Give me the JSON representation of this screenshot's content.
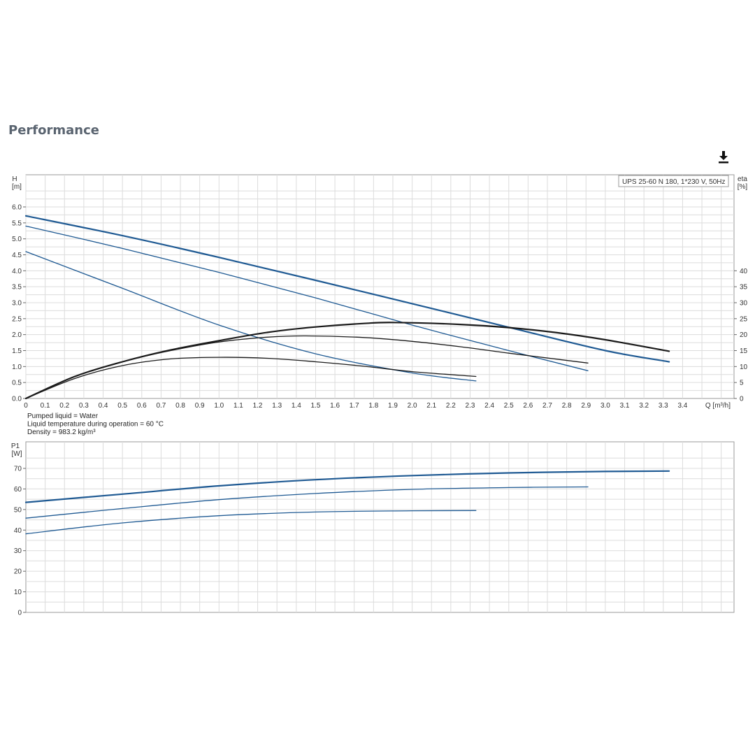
{
  "page": {
    "title": "Performance",
    "download_icon": "download-icon"
  },
  "colors": {
    "head": "#1f5a93",
    "eta": "#1a1a1a",
    "power": "#1f5a93",
    "grid": "#dcdcdc",
    "frame": "#9a9a9a"
  },
  "chart_data": [
    {
      "type": "line",
      "legend_label": "UPS 25-60 N 180, 1*230 V, 50Hz",
      "xlabel": "Q [m³/h]",
      "ylabel_left": [
        "H",
        "[m]"
      ],
      "ylabel_right": [
        "eta",
        "[%]"
      ],
      "xlim": [
        0,
        3.65
      ],
      "ylim_left": [
        0,
        6.0
      ],
      "ylim_right": [
        0,
        40
      ],
      "grid": true,
      "legend": "top-right",
      "x_ticks": [
        "0",
        "0.1",
        "0.2",
        "0.3",
        "0.4",
        "0.5",
        "0.6",
        "0.7",
        "0.8",
        "0.9",
        "1.0",
        "1.1",
        "1.2",
        "1.3",
        "1.4",
        "1.5",
        "1.6",
        "1.7",
        "1.8",
        "1.9",
        "2.0",
        "2.1",
        "2.2",
        "2.3",
        "2.4",
        "2.5",
        "2.6",
        "2.7",
        "2.8",
        "2.9",
        "3.0",
        "3.1",
        "3.2",
        "3.3",
        "3.4"
      ],
      "y_ticks_left": [
        "0.0",
        "0.5",
        "1.0",
        "1.5",
        "2.0",
        "2.5",
        "3.0",
        "3.5",
        "4.0",
        "4.5",
        "5.0",
        "5.5",
        "6.0"
      ],
      "y_ticks_right": [
        "0",
        "5",
        "10",
        "15",
        "20",
        "25",
        "30",
        "35",
        "40"
      ],
      "head_series": [
        {
          "x": [
            0,
            0.5,
            1.0,
            1.5,
            2.0,
            2.5,
            3.0,
            3.33
          ],
          "y": [
            5.72,
            5.1,
            4.42,
            3.7,
            2.97,
            2.23,
            1.5,
            1.15
          ]
        },
        {
          "x": [
            0,
            0.5,
            1.0,
            1.5,
            2.0,
            2.5,
            2.91
          ],
          "y": [
            5.4,
            4.7,
            3.95,
            3.15,
            2.3,
            1.5,
            0.87
          ]
        },
        {
          "x": [
            0,
            0.5,
            1.0,
            1.5,
            2.0,
            2.33
          ],
          "y": [
            4.6,
            3.45,
            2.3,
            1.4,
            0.8,
            0.55
          ]
        }
      ],
      "eta_series": [
        {
          "x": [
            0,
            0.25,
            0.5,
            0.75,
            1.0,
            1.25,
            1.5,
            1.75,
            1.9,
            2.25,
            2.5,
            2.75,
            3.0,
            3.33
          ],
          "y": [
            0,
            6.8,
            11.5,
            15.2,
            18.1,
            20.7,
            22.4,
            23.5,
            23.8,
            23.2,
            22.2,
            20.6,
            18.4,
            14.8
          ]
        },
        {
          "x": [
            0,
            0.25,
            0.5,
            0.75,
            1.0,
            1.25,
            1.45,
            1.75,
            2.0,
            2.25,
            2.5,
            2.75,
            2.91
          ],
          "y": [
            0,
            6.8,
            11.5,
            15.0,
            17.7,
            19.2,
            19.6,
            19.1,
            17.9,
            16.2,
            14.2,
            12.3,
            11.1
          ]
        },
        {
          "x": [
            0,
            0.25,
            0.5,
            0.75,
            1.0,
            1.25,
            1.5,
            1.75,
            2.0,
            2.33
          ],
          "y": [
            0,
            6.2,
            10.3,
            12.4,
            12.9,
            12.6,
            11.5,
            10.1,
            8.4,
            6.9
          ]
        }
      ],
      "notes": [
        "Pumped liquid = Water",
        "Liquid temperature during operation = 60 °C",
        "Density = 983.2 kg/m³"
      ]
    },
    {
      "type": "line",
      "ylabel": [
        "P1",
        "[W]"
      ],
      "xlim": [
        0,
        3.65
      ],
      "ylim": [
        0,
        70
      ],
      "grid": true,
      "y_ticks": [
        "0",
        "10",
        "20",
        "30",
        "40",
        "50",
        "60",
        "70"
      ],
      "series": [
        {
          "x": [
            0,
            0.5,
            1.0,
            1.5,
            2.0,
            2.5,
            3.0,
            3.33
          ],
          "y": [
            53.5,
            57.5,
            61.5,
            64.5,
            66.5,
            67.8,
            68.5,
            68.7
          ]
        },
        {
          "x": [
            0,
            0.5,
            1.0,
            1.5,
            2.0,
            2.5,
            2.91
          ],
          "y": [
            45.8,
            50.5,
            54.8,
            57.8,
            59.8,
            60.7,
            61.0
          ]
        },
        {
          "x": [
            0,
            0.5,
            1.0,
            1.5,
            2.0,
            2.33
          ],
          "y": [
            38.2,
            43.5,
            47.0,
            48.8,
            49.4,
            49.5
          ]
        }
      ]
    }
  ]
}
